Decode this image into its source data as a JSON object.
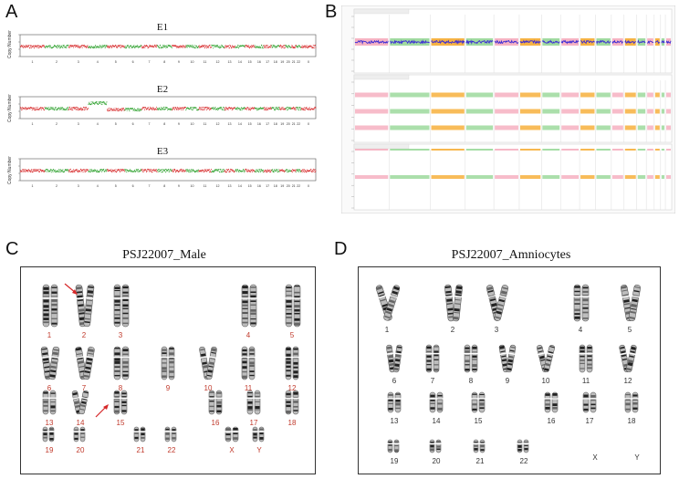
{
  "panels": {
    "A": {
      "letter": "A",
      "plots": [
        {
          "title": "E1",
          "ylabel": "Copy Number"
        },
        {
          "title": "E2",
          "ylabel": "Copy Number"
        },
        {
          "title": "E3",
          "ylabel": "Copy Number"
        }
      ],
      "chromosome_ticks": [
        "1",
        "2",
        "3",
        "4",
        "5",
        "6",
        "7",
        "8",
        "9",
        "10",
        "11",
        "12",
        "13",
        "14",
        "15",
        "16",
        "17",
        "18",
        "19",
        "20",
        "21",
        "22",
        "X"
      ]
    },
    "B": {
      "letter": "B"
    },
    "C": {
      "letter": "C",
      "title": "PSJ22007_Male",
      "labels": [
        "1",
        "2",
        "3",
        "4",
        "5",
        "6",
        "7",
        "8",
        "9",
        "10",
        "11",
        "12",
        "13",
        "14",
        "15",
        "16",
        "17",
        "18",
        "19",
        "20",
        "21",
        "22",
        "X",
        "Y"
      ]
    },
    "D": {
      "letter": "D",
      "title": "PSJ22007_Amniocytes",
      "labels": [
        "1",
        "2",
        "3",
        "4",
        "5",
        "6",
        "7",
        "8",
        "9",
        "10",
        "11",
        "12",
        "13",
        "14",
        "15",
        "16",
        "17",
        "18",
        "19",
        "20",
        "21",
        "22",
        "X",
        "Y"
      ]
    }
  },
  "colors": {
    "red": "#d62728",
    "green": "#2ca02c",
    "purple": "#3b2bd6",
    "orange": "#f5a623",
    "pink": "#f4a6b8",
    "lightgreen": "#8fd48f"
  }
}
